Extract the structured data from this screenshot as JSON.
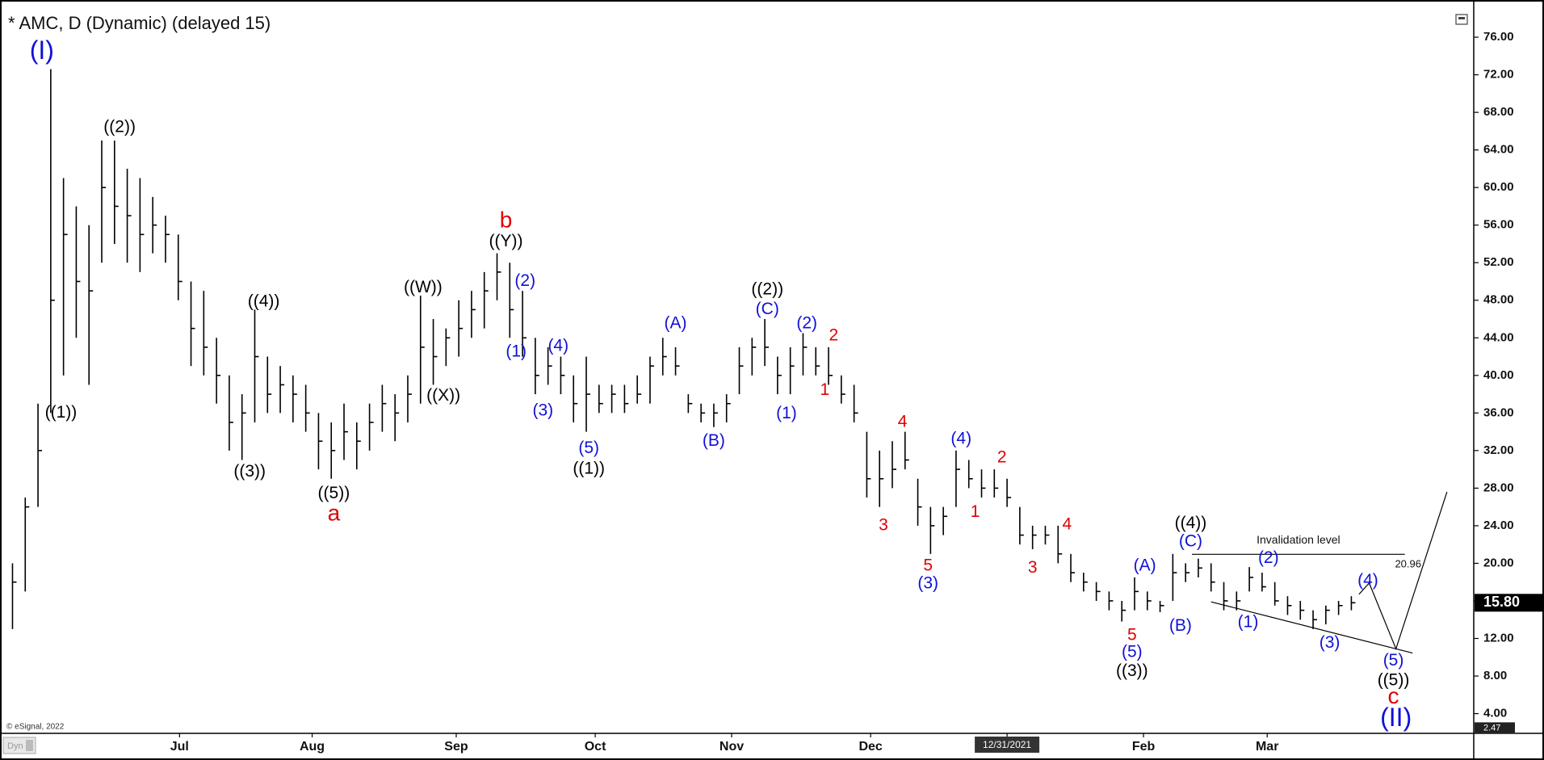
{
  "chart_data": {
    "type": "ohlc",
    "title": "* AMC, D (Dynamic) (delayed 15)",
    "color": "#000000",
    "high": [
      20,
      27,
      37,
      72.6,
      61,
      58,
      56,
      65,
      65,
      62,
      61,
      59,
      57,
      55,
      50,
      49,
      44,
      40,
      38,
      47,
      42,
      41,
      40,
      39,
      36,
      35,
      37,
      35,
      37,
      39,
      38,
      40,
      48.5,
      46,
      45,
      48,
      49,
      51,
      53,
      52,
      49,
      44,
      43,
      42,
      40,
      42,
      39,
      39,
      39,
      40,
      42,
      44,
      43,
      38,
      37,
      37,
      38,
      43,
      44,
      46,
      42,
      43,
      44.5,
      43,
      43,
      40,
      39,
      34,
      32,
      33,
      34,
      29,
      26,
      26,
      32,
      31,
      30,
      30,
      29,
      26,
      24,
      24,
      24,
      21,
      19,
      18,
      17,
      16,
      18.5,
      17,
      16,
      21,
      20,
      20.5,
      20,
      18,
      17,
      19.6,
      19,
      18,
      16.5,
      16,
      15,
      15.5,
      16,
      16.5
    ],
    "low": [
      13,
      17,
      26,
      36,
      40,
      44,
      39,
      52,
      54,
      52,
      51,
      53,
      52,
      48,
      41,
      40,
      37,
      32,
      31,
      35,
      36,
      36,
      35,
      34,
      30,
      29,
      31,
      30,
      32,
      34,
      33,
      35,
      37,
      39,
      41,
      42,
      44,
      45,
      48,
      44,
      42,
      38,
      39,
      38,
      35,
      34,
      36,
      36,
      36,
      37,
      37,
      40,
      40,
      36,
      35,
      34.5,
      35,
      38,
      40,
      41,
      38,
      38,
      40,
      40,
      39,
      37,
      35,
      27,
      26,
      28,
      30,
      24,
      21,
      23,
      26,
      28,
      27,
      27,
      26,
      22,
      21.5,
      22,
      20,
      18,
      17,
      16,
      15,
      13.8,
      15,
      15,
      14.8,
      16,
      18,
      18.5,
      17,
      15,
      15,
      17,
      17,
      15.5,
      14.5,
      14,
      13,
      13.5,
      14.5,
      15
    ],
    "close": [
      18,
      26,
      32,
      48,
      55,
      50,
      49,
      60,
      58,
      57,
      55,
      56,
      55,
      50,
      45,
      43,
      40,
      35,
      36,
      42,
      38,
      39,
      38,
      36,
      33,
      32,
      34,
      33,
      35,
      37,
      36,
      38,
      43,
      42,
      44,
      45,
      47,
      49,
      51,
      47,
      44,
      40,
      41,
      40,
      37,
      38,
      37,
      38,
      37,
      38,
      41,
      42,
      41,
      37,
      36,
      36,
      37,
      41,
      43,
      43,
      40,
      41,
      43,
      41,
      40,
      38,
      36,
      29,
      29,
      30,
      31,
      26,
      24,
      25,
      30,
      29,
      28,
      28,
      27,
      23,
      23,
      23,
      21,
      19,
      18,
      17,
      16,
      15,
      17,
      16,
      15.5,
      19,
      19,
      19.5,
      18,
      16,
      16,
      18.5,
      17.5,
      16,
      15.5,
      15,
      14,
      15,
      15.5,
      15.8
    ],
    "xlim": [
      -0.6,
      114.6
    ],
    "xticks": [
      {
        "value": 13.1,
        "label": "Jul"
      },
      {
        "value": 23.5,
        "label": "Aug"
      },
      {
        "value": 34.8,
        "label": "Sep"
      },
      {
        "value": 45.7,
        "label": "Oct"
      },
      {
        "value": 56.4,
        "label": "Nov"
      },
      {
        "value": 67.3,
        "label": "Dec"
      },
      {
        "value": 78,
        "label": "12/31/2021",
        "highlight": true
      },
      {
        "value": 88.7,
        "label": "Feb"
      },
      {
        "value": 98.4,
        "label": "Mar"
      }
    ],
    "ylim": [
      1.9,
      79.1
    ],
    "yticks": [
      {
        "value": 4,
        "label": "4.00"
      },
      {
        "value": 8,
        "label": "8.00"
      },
      {
        "value": 12,
        "label": "12.00"
      },
      {
        "value": 16,
        "label": "16.00"
      },
      {
        "value": 20,
        "label": "20.00"
      },
      {
        "value": 24,
        "label": "24.00"
      },
      {
        "value": 28,
        "label": "28.00"
      },
      {
        "value": 32,
        "label": "32.00"
      },
      {
        "value": 36,
        "label": "36.00"
      },
      {
        "value": 40,
        "label": "40.00"
      },
      {
        "value": 44,
        "label": "44.00"
      },
      {
        "value": 48,
        "label": "48.00"
      },
      {
        "value": 52,
        "label": "52.00"
      },
      {
        "value": 56,
        "label": "56.00"
      },
      {
        "value": 60,
        "label": "60.00"
      },
      {
        "value": 64,
        "label": "64.00"
      },
      {
        "value": 68,
        "label": "68.00"
      },
      {
        "value": 72,
        "label": "72.00"
      },
      {
        "value": 76,
        "label": "76.00"
      }
    ],
    "last_price": {
      "value": 15.8,
      "label": "15.80"
    },
    "scale_low": {
      "value": 2.47,
      "label": "2.47"
    },
    "invalidation": {
      "label": "Invalidation level",
      "level": 20.96,
      "x": [
        92.5,
        109.2
      ]
    },
    "trend_lines": [
      {
        "x": [
          94,
          109.8
        ],
        "y": [
          15.9,
          10.45
        ]
      },
      {
        "x": [
          105.6,
          106.4,
          108.5,
          112.5
        ],
        "y": [
          16.7,
          17.9,
          10.9,
          27.6
        ]
      }
    ],
    "annotations": [
      {
        "text": "(I)",
        "x": 2.3,
        "y": 74.4,
        "color": "#1010d8",
        "size": "large"
      },
      {
        "text": "((1))",
        "x": 3.8,
        "y": 36.0,
        "color": "#000000",
        "size": "normal"
      },
      {
        "text": "((2))",
        "x": 8.4,
        "y": 66.4,
        "color": "#000000",
        "size": "normal"
      },
      {
        "text": "((3))",
        "x": 18.6,
        "y": 29.7,
        "color": "#000000",
        "size": "normal"
      },
      {
        "text": "((4))",
        "x": 19.7,
        "y": 47.8,
        "color": "#000000",
        "size": "normal"
      },
      {
        "text": "((5))",
        "x": 25.2,
        "y": 27.4,
        "color": "#000000",
        "size": "normal"
      },
      {
        "text": "a",
        "x": 25.2,
        "y": 25.2,
        "color": "#e00000",
        "size": "medium"
      },
      {
        "text": "((W))",
        "x": 32.2,
        "y": 49.3,
        "color": "#000000",
        "size": "normal"
      },
      {
        "text": "((X))",
        "x": 33.8,
        "y": 37.8,
        "color": "#000000",
        "size": "normal"
      },
      {
        "text": "((Y))",
        "x": 38.7,
        "y": 54.2,
        "color": "#000000",
        "size": "normal"
      },
      {
        "text": "b",
        "x": 38.7,
        "y": 56.4,
        "color": "#e00000",
        "size": "medium"
      },
      {
        "text": "(2)",
        "x": 40.2,
        "y": 50.0,
        "color": "#1010d8",
        "size": "normal"
      },
      {
        "text": "(1)",
        "x": 39.5,
        "y": 42.5,
        "color": "#1010d8",
        "size": "normal"
      },
      {
        "text": "(3)",
        "x": 41.6,
        "y": 36.2,
        "color": "#1010d8",
        "size": "normal"
      },
      {
        "text": "(4)",
        "x": 42.8,
        "y": 43.1,
        "color": "#1010d8",
        "size": "normal"
      },
      {
        "text": "(5)",
        "x": 45.2,
        "y": 32.2,
        "color": "#1010d8",
        "size": "normal"
      },
      {
        "text": "((1))",
        "x": 45.2,
        "y": 30.0,
        "color": "#000000",
        "size": "normal"
      },
      {
        "text": "(A)",
        "x": 52.0,
        "y": 45.5,
        "color": "#1010d8",
        "size": "normal"
      },
      {
        "text": "(B)",
        "x": 55.0,
        "y": 33.0,
        "color": "#1010d8",
        "size": "normal"
      },
      {
        "text": "((2))",
        "x": 59.2,
        "y": 49.1,
        "color": "#000000",
        "size": "normal"
      },
      {
        "text": "(C)",
        "x": 59.2,
        "y": 47.0,
        "color": "#1010d8",
        "size": "normal"
      },
      {
        "text": "(1)",
        "x": 60.7,
        "y": 35.9,
        "color": "#1010d8",
        "size": "normal"
      },
      {
        "text": "(2)",
        "x": 62.3,
        "y": 45.5,
        "color": "#1010d8",
        "size": "normal"
      },
      {
        "text": "2",
        "x": 64.4,
        "y": 44.2,
        "color": "#e00000",
        "size": "normal"
      },
      {
        "text": "1",
        "x": 63.7,
        "y": 38.4,
        "color": "#e00000",
        "size": "normal"
      },
      {
        "text": "4",
        "x": 69.8,
        "y": 35.0,
        "color": "#e00000",
        "size": "normal"
      },
      {
        "text": "3",
        "x": 68.3,
        "y": 24.0,
        "color": "#e00000",
        "size": "normal"
      },
      {
        "text": "(4)",
        "x": 74.4,
        "y": 33.2,
        "color": "#1010d8",
        "size": "normal"
      },
      {
        "text": "5",
        "x": 71.8,
        "y": 19.7,
        "color": "#e00000",
        "size": "normal"
      },
      {
        "text": "(3)",
        "x": 71.8,
        "y": 17.8,
        "color": "#1010d8",
        "size": "normal"
      },
      {
        "text": "2",
        "x": 77.6,
        "y": 31.2,
        "color": "#e00000",
        "size": "normal"
      },
      {
        "text": "1",
        "x": 75.5,
        "y": 25.4,
        "color": "#e00000",
        "size": "normal"
      },
      {
        "text": "4",
        "x": 82.7,
        "y": 24.1,
        "color": "#e00000",
        "size": "normal"
      },
      {
        "text": "3",
        "x": 80.0,
        "y": 19.5,
        "color": "#e00000",
        "size": "normal"
      },
      {
        "text": "(A)",
        "x": 88.8,
        "y": 19.7,
        "color": "#1010d8",
        "size": "normal"
      },
      {
        "text": "5",
        "x": 87.8,
        "y": 12.3,
        "color": "#e00000",
        "size": "normal"
      },
      {
        "text": "(5)",
        "x": 87.8,
        "y": 10.5,
        "color": "#1010d8",
        "size": "normal"
      },
      {
        "text": "((3))",
        "x": 87.8,
        "y": 8.5,
        "color": "#000000",
        "size": "normal"
      },
      {
        "text": "(B)",
        "x": 91.6,
        "y": 13.3,
        "color": "#1010d8",
        "size": "normal"
      },
      {
        "text": "((4))",
        "x": 92.4,
        "y": 24.2,
        "color": "#000000",
        "size": "normal"
      },
      {
        "text": "(C)",
        "x": 92.4,
        "y": 22.3,
        "color": "#1010d8",
        "size": "normal"
      },
      {
        "text": "(2)",
        "x": 98.5,
        "y": 20.5,
        "color": "#1010d8",
        "size": "normal"
      },
      {
        "text": "(1)",
        "x": 96.9,
        "y": 13.7,
        "color": "#1010d8",
        "size": "normal"
      },
      {
        "text": "(3)",
        "x": 103.3,
        "y": 11.5,
        "color": "#1010d8",
        "size": "normal"
      },
      {
        "text": "(4)",
        "x": 106.3,
        "y": 18.1,
        "color": "#1010d8",
        "size": "normal"
      },
      {
        "text": "(5)",
        "x": 108.3,
        "y": 9.6,
        "color": "#1010d8",
        "size": "normal"
      },
      {
        "text": "((5))",
        "x": 108.3,
        "y": 7.5,
        "color": "#000000",
        "size": "normal"
      },
      {
        "text": "c",
        "x": 108.3,
        "y": 5.7,
        "color": "#e00000",
        "size": "medium"
      },
      {
        "text": "(II)",
        "x": 108.5,
        "y": 3.4,
        "color": "#1010d8",
        "size": "large"
      }
    ],
    "copyright": "© eSignal, 2022",
    "mode_badge": "Dyn"
  }
}
